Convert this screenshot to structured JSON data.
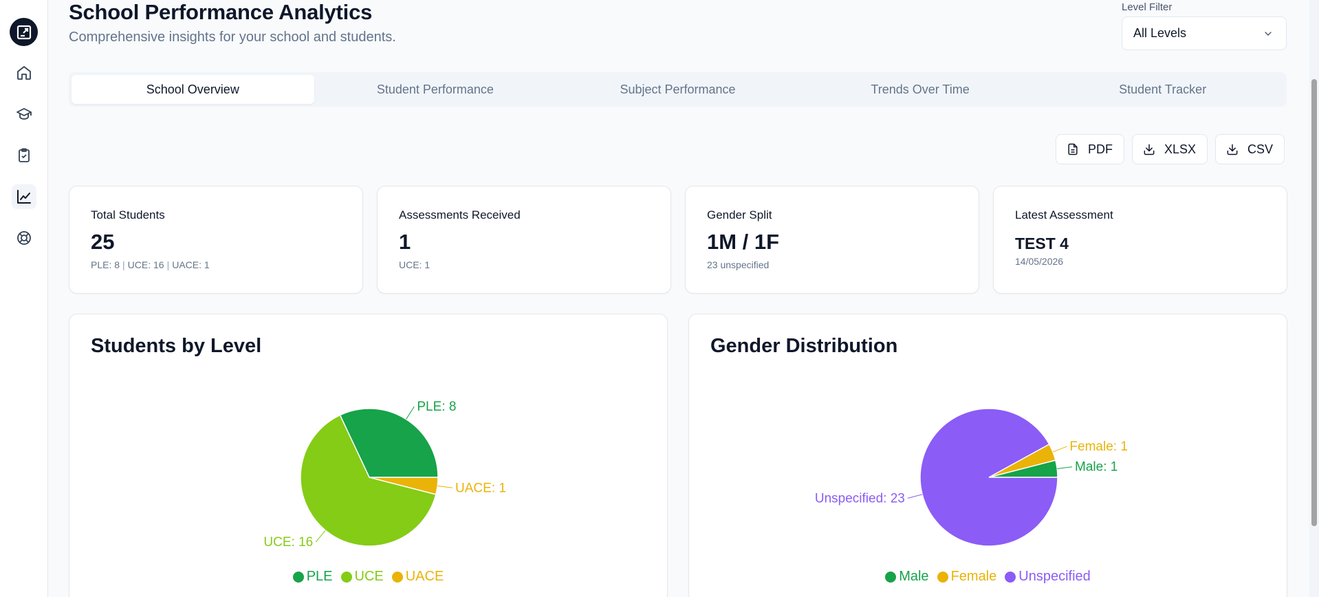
{
  "sidebar": {
    "logo": "app-logo",
    "items": [
      {
        "name": "home",
        "icon": "home-icon"
      },
      {
        "name": "students",
        "icon": "graduation-cap-icon"
      },
      {
        "name": "assessments",
        "icon": "clipboard-check-icon"
      },
      {
        "name": "analytics",
        "icon": "chart-line-icon",
        "active": true
      },
      {
        "name": "support",
        "icon": "lifebuoy-icon"
      }
    ]
  },
  "header": {
    "title": "School Performance Analytics",
    "subtitle": "Comprehensive insights for your school and students."
  },
  "filter": {
    "label": "Level Filter",
    "value": "All Levels"
  },
  "tabs": [
    {
      "label": "School Overview",
      "active": true
    },
    {
      "label": "Student Performance"
    },
    {
      "label": "Subject Performance"
    },
    {
      "label": "Trends Over Time"
    },
    {
      "label": "Student Tracker"
    }
  ],
  "exports": {
    "pdf": "PDF",
    "xlsx": "XLSX",
    "csv": "CSV"
  },
  "stats": {
    "total_students": {
      "label": "Total Students",
      "value": "25",
      "ple": "PLE: 8",
      "uce": "UCE: 16",
      "uace": "UACE: 1"
    },
    "assessments": {
      "label": "Assessments Received",
      "value": "1",
      "sub": "UCE: 1"
    },
    "gender": {
      "label": "Gender Split",
      "value": "1M / 1F",
      "sub": "23 unspecified"
    },
    "latest": {
      "label": "Latest Assessment",
      "value": "TEST 4",
      "sub": "14/05/2026"
    }
  },
  "colors": {
    "ple": "#16a34a",
    "uce": "#84cc16",
    "uace": "#eab308",
    "male": "#16a34a",
    "female": "#eab308",
    "unspecified": "#8b5cf6"
  },
  "chart_data": [
    {
      "type": "pie",
      "title": "Students by Level",
      "categories": [
        "PLE",
        "UCE",
        "UACE"
      ],
      "values": [
        8,
        16,
        1
      ],
      "labels": [
        "PLE: 8",
        "UCE: 16",
        "UACE: 1"
      ],
      "legend": "bottom"
    },
    {
      "type": "pie",
      "title": "Gender Distribution",
      "categories": [
        "Male",
        "Female",
        "Unspecified"
      ],
      "values": [
        1,
        1,
        23
      ],
      "labels": [
        "Male: 1",
        "Female: 1",
        "Unspecified: 23"
      ],
      "legend": "bottom"
    }
  ]
}
